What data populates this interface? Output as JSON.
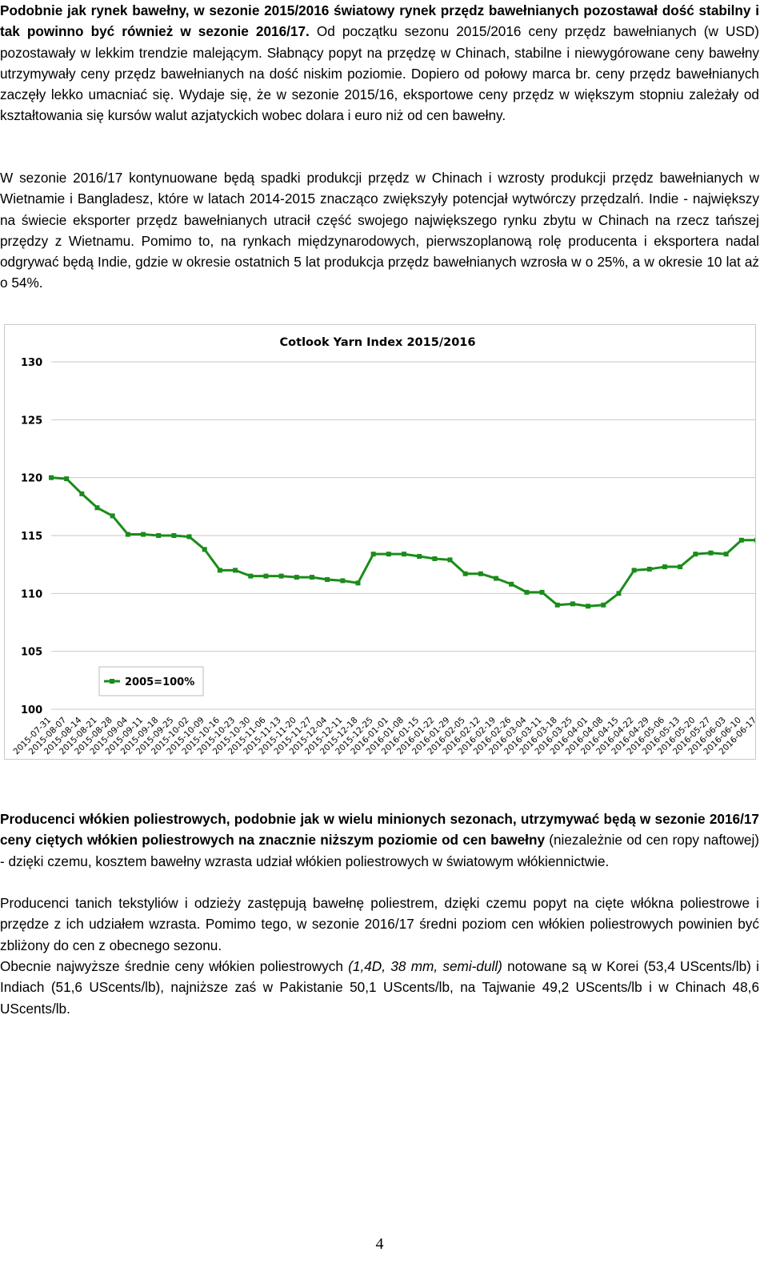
{
  "paragraph_1": {
    "bold_lead": "Podobnie jak rynek bawełny, w sezonie 2015/2016 światowy rynek przędz bawełnianych pozostawał dość stabilny i tak powinno być również w sezonie 2016/17.",
    "text": "Od początku sezonu 2015/2016 ceny przędz bawełnianych (w USD) pozostawały w lekkim trendzie malejącym. Słabnący popyt na przędzę w Chinach, stabilne i niewygórowane ceny bawełny utrzymywały ceny przędz bawełnianych na dość niskim poziomie. Dopiero od połowy marca br. ceny przędz bawełnianych zaczęły lekko umacniać się. Wydaje się, że w sezonie 2015/16, eksportowe ceny przędz w większym stopniu zależały od kształtowania się kursów walut azjatyckich wobec dolara i euro niż od cen bawełny."
  },
  "paragraph_2": {
    "text": "W sezonie 2016/17 kontynuowane będą spadki produkcji przędz w Chinach i wzrosty produkcji przędz bawełnianych w Wietnamie i Bangladesz, które w latach 2014-2015 znacząco zwiększyły potencjał wytwórczy przędzalń. Indie - największy na świecie eksporter przędz bawełnianych utracił część swojego największego rynku zbytu w Chinach na rzecz tańszej przędzy z Wietnamu. Pomimo to, na rynkach międzynarodowych, pierwszoplanową rolę producenta i eksportera nadal odgrywać będą Indie, gdzie w okresie ostatnich 5 lat produkcja przędz bawełnianych wzrosła w o 25%, a w okresie 10 lat aż o 54%."
  },
  "chart_data": {
    "type": "line",
    "title": "Cotlook Yarn Index 2015/2016",
    "xlabel": "",
    "ylabel": "",
    "ylim": [
      100,
      130
    ],
    "yticks": [
      100,
      105,
      110,
      115,
      120,
      125,
      130
    ],
    "grid": true,
    "legend_position": "lower-left",
    "line_color": "#1a8c1a",
    "categories": [
      "2015-07-31",
      "2015-08-07",
      "2015-08-14",
      "2015-08-21",
      "2015-08-28",
      "2015-09-04",
      "2015-09-11",
      "2015-09-18",
      "2015-09-25",
      "2015-10-02",
      "2015-10-09",
      "2015-10-16",
      "2015-10-23",
      "2015-10-30",
      "2015-11-06",
      "2015-11-13",
      "2015-11-20",
      "2015-11-27",
      "2015-12-04",
      "2015-12-11",
      "2015-12-18",
      "2015-12-25",
      "2016-01-01",
      "2016-01-08",
      "2016-01-15",
      "2016-01-22",
      "2016-01-29",
      "2016-02-05",
      "2016-02-12",
      "2016-02-19",
      "2016-02-26",
      "2016-03-04",
      "2016-03-11",
      "2016-03-18",
      "2016-03-25",
      "2016-04-01",
      "2016-04-08",
      "2016-04-15",
      "2016-04-22",
      "2016-04-29",
      "2016-05-06",
      "2016-05-13",
      "2016-05-20",
      "2016-05-27",
      "2016-06-03",
      "2016-06-10",
      "2016-06-17"
    ],
    "series": [
      {
        "name": "2005=100%",
        "values": [
          120.0,
          119.9,
          118.6,
          117.4,
          116.7,
          115.1,
          115.1,
          115.0,
          115.0,
          114.9,
          113.8,
          112.0,
          112.0,
          111.5,
          111.5,
          111.5,
          111.4,
          111.4,
          111.2,
          111.1,
          110.9,
          113.4,
          113.4,
          113.4,
          113.2,
          113.0,
          112.9,
          111.7,
          111.7,
          111.3,
          110.8,
          110.1,
          110.1,
          109.0,
          109.1,
          108.9,
          109.0,
          110.0,
          112.0,
          112.1,
          112.3,
          112.3,
          113.4,
          113.5,
          113.4,
          114.6,
          114.6
        ]
      }
    ]
  },
  "paragraph_3": {
    "bold_lead": "Producenci włókien poliestrowych, podobnie jak w wielu minionych sezonach, utrzymywać będą w sezonie 2016/17 ceny ciętych włókien poliestrowych na znacznie niższym poziomie od cen bawełny",
    "text": " (niezależnie od cen ropy naftowej) - dzięki czemu, kosztem bawełny wzrasta udział włókien poliestrowych w światowym włókiennictwie."
  },
  "paragraph_4": {
    "text": "Producenci tanich tekstyliów i odzieży zastępują bawełnę poliestrem, dzięki czemu popyt na cięte włókna poliestrowe i przędze z ich udziałem wzrasta. Pomimo tego, w sezonie 2016/17 średni poziom cen włókien poliestrowych powinien być zbliżony do cen z obecnego sezonu."
  },
  "paragraph_5": {
    "text_before": "Obecnie najwyższe średnie ceny włókien poliestrowych ",
    "italic": "(1,4D, 38 mm, semi-dull)",
    "text_after": " notowane są w Korei (53,4 UScents/lb) i Indiach (51,6 UScents/lb), najniższe zaś w Pakistanie 50,1 UScents/lb, na Tajwanie 49,2 UScents/lb i w Chinach 48,6 UScents/lb."
  },
  "page_number": "4"
}
